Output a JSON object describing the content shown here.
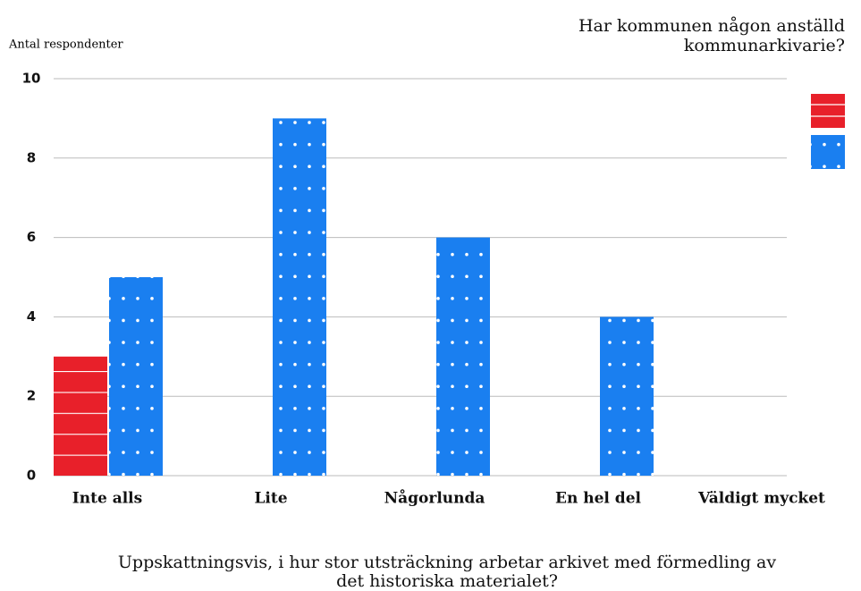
{
  "chart_data": {
    "type": "bar",
    "y_label": "Antal respondenter",
    "legend_title": [
      "Har kommunen någon anställd",
      "kommunarkivarie?"
    ],
    "x_label": [
      "Uppskattningsvis, i hur stor utsträckning arbetar arkivet med förmedling av",
      "det historiska materialet?"
    ],
    "categories": [
      "Inte alls",
      "Lite",
      "Någorlunda",
      "En hel del",
      "Väldigt mycket"
    ],
    "series": [
      {
        "color": "#e8202a",
        "pattern": "lines",
        "values": [
          3,
          0,
          0,
          0,
          0
        ]
      },
      {
        "color": "#1a7ff0",
        "pattern": "dots",
        "values": [
          5,
          9,
          6,
          4,
          0
        ]
      }
    ],
    "ylim": [
      0,
      10
    ],
    "yticks": [
      0,
      2,
      4,
      6,
      8,
      10
    ],
    "grid": true,
    "legend": "right"
  }
}
